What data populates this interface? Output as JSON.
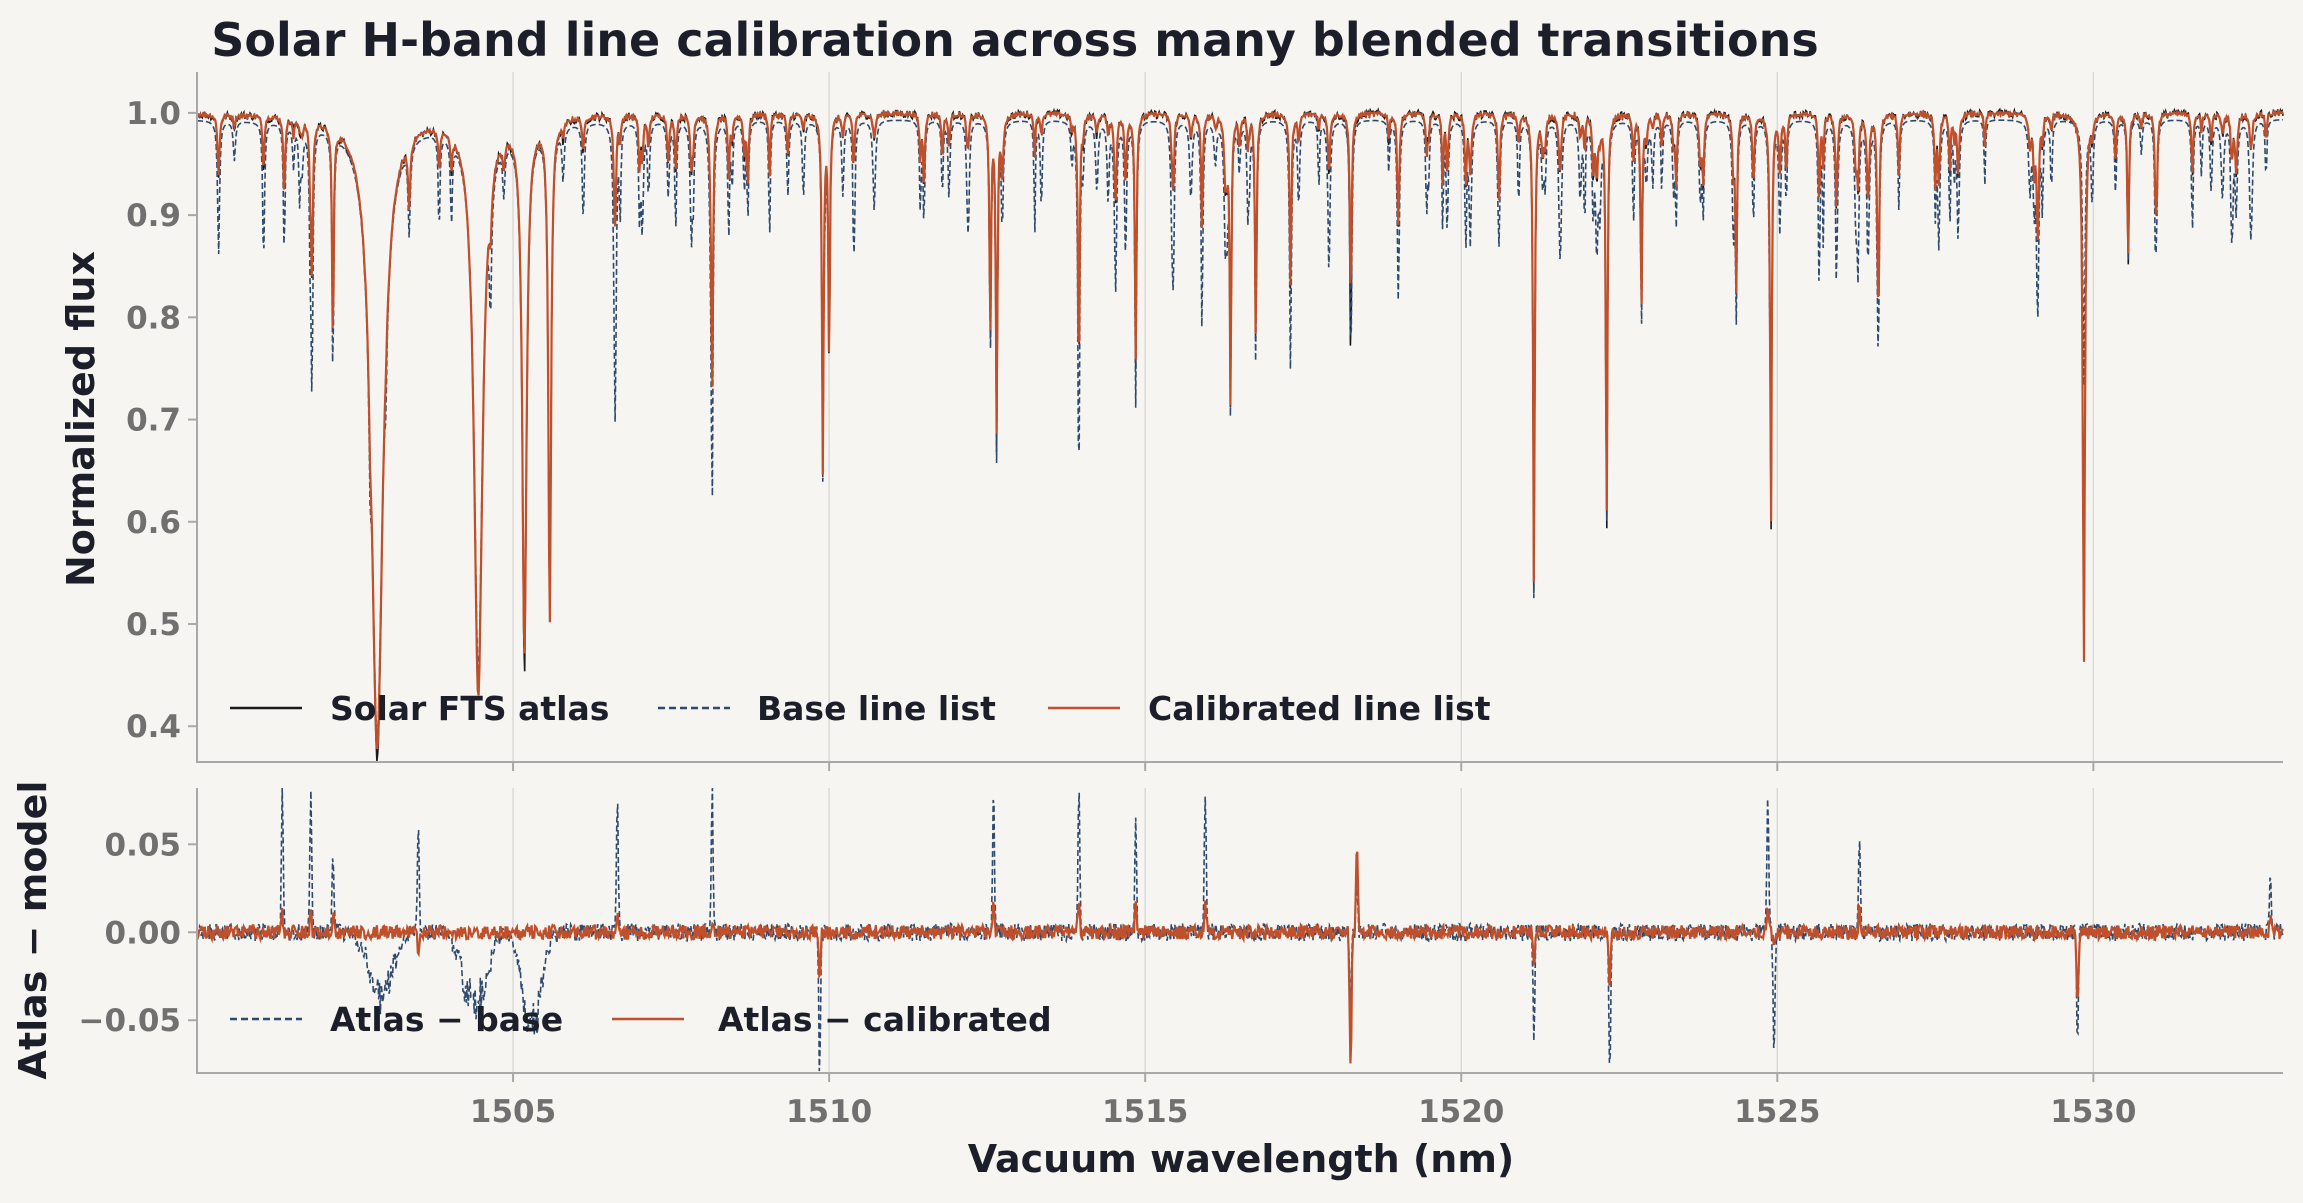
{
  "chart_data": [
    {
      "type": "line",
      "title": "Solar H-band line calibration across many blended transitions",
      "xlabel": "",
      "ylabel": "Normalized flux",
      "xlim": [
        1500.0,
        1533.0
      ],
      "ylim": [
        0.365,
        1.04
      ],
      "yticks": [
        0.4,
        0.5,
        0.6,
        0.7,
        0.8,
        0.9,
        1.0
      ],
      "ytick_labels": [
        "0.4",
        "0.5",
        "0.6",
        "0.7",
        "0.8",
        "0.9",
        "1.0"
      ],
      "xticks": [
        1505,
        1510,
        1515,
        1520,
        1525,
        1530
      ],
      "grid": "vertical",
      "legend_position": "lower-left",
      "series": [
        {
          "name": "Solar FTS atlas",
          "color": "#1a1a1a",
          "style": "solid"
        },
        {
          "name": "Base line list",
          "color": "#2e4a6e",
          "style": "dashed"
        },
        {
          "name": "Calibrated line list",
          "color": "#c0502b",
          "style": "solid"
        }
      ],
      "lines": [
        {
          "center": 1502.85,
          "atlas_depth": 0.37,
          "base_depth": 0.4,
          "cal_depth": 0.38,
          "width": 0.11
        },
        {
          "center": 1504.45,
          "atlas_depth": 0.43,
          "base_depth": 0.46,
          "cal_depth": 0.43,
          "width": 0.08
        },
        {
          "center": 1505.18,
          "atlas_depth": 0.45,
          "base_depth": 0.48,
          "cal_depth": 0.47,
          "width": 0.04
        },
        {
          "center": 1505.58,
          "atlas_depth": 0.5,
          "base_depth": 0.52,
          "cal_depth": 0.5,
          "width": 0.025
        },
        {
          "center": 1501.38,
          "atlas_depth": 0.92,
          "base_depth": 0.87,
          "cal_depth": 0.92,
          "width": 0.015
        },
        {
          "center": 1501.82,
          "atlas_depth": 0.85,
          "base_depth": 0.745,
          "cal_depth": 0.85,
          "width": 0.015
        },
        {
          "center": 1502.15,
          "atlas_depth": 0.78,
          "base_depth": 0.75,
          "cal_depth": 0.78,
          "width": 0.015
        },
        {
          "center": 1506.62,
          "atlas_depth": 0.95,
          "base_depth": 0.83,
          "cal_depth": 0.95,
          "width": 0.015
        },
        {
          "center": 1508.15,
          "atlas_depth": 0.73,
          "base_depth": 0.64,
          "cal_depth": 0.73,
          "width": 0.015
        },
        {
          "center": 1509.9,
          "atlas_depth": 0.65,
          "base_depth": 0.655,
          "cal_depth": 0.65,
          "width": 0.015
        },
        {
          "center": 1510.0,
          "atlas_depth": 0.76,
          "base_depth": 0.8,
          "cal_depth": 0.76,
          "width": 0.015
        },
        {
          "center": 1512.55,
          "atlas_depth": 0.77,
          "base_depth": 0.77,
          "cal_depth": 0.78,
          "width": 0.015
        },
        {
          "center": 1512.65,
          "atlas_depth": 0.67,
          "base_depth": 0.67,
          "cal_depth": 0.69,
          "width": 0.015
        },
        {
          "center": 1513.95,
          "atlas_depth": 0.79,
          "base_depth": 0.7,
          "cal_depth": 0.79,
          "width": 0.015
        },
        {
          "center": 1514.85,
          "atlas_depth": 0.75,
          "base_depth": 0.72,
          "cal_depth": 0.76,
          "width": 0.015
        },
        {
          "center": 1516.35,
          "atlas_depth": 0.72,
          "base_depth": 0.72,
          "cal_depth": 0.72,
          "width": 0.015
        },
        {
          "center": 1516.75,
          "atlas_depth": 0.78,
          "base_depth": 0.76,
          "cal_depth": 0.78,
          "width": 0.015
        },
        {
          "center": 1517.3,
          "atlas_depth": 0.85,
          "base_depth": 0.81,
          "cal_depth": 0.85,
          "width": 0.015
        },
        {
          "center": 1518.25,
          "atlas_depth": 0.775,
          "base_depth": 0.81,
          "cal_depth": 0.84,
          "width": 0.015
        },
        {
          "center": 1521.15,
          "atlas_depth": 0.52,
          "base_depth": 0.52,
          "cal_depth": 0.53,
          "width": 0.015
        },
        {
          "center": 1522.3,
          "atlas_depth": 0.58,
          "base_depth": 0.6,
          "cal_depth": 0.6,
          "width": 0.015
        },
        {
          "center": 1522.85,
          "atlas_depth": 0.81,
          "base_depth": 0.8,
          "cal_depth": 0.81,
          "width": 0.015
        },
        {
          "center": 1524.35,
          "atlas_depth": 0.83,
          "base_depth": 0.81,
          "cal_depth": 0.83,
          "width": 0.015
        },
        {
          "center": 1524.9,
          "atlas_depth": 0.59,
          "base_depth": 0.62,
          "cal_depth": 0.6,
          "width": 0.015
        },
        {
          "center": 1526.6,
          "atlas_depth": 0.81,
          "base_depth": 0.8,
          "cal_depth": 0.81,
          "width": 0.015
        },
        {
          "center": 1529.85,
          "atlas_depth": 0.46,
          "base_depth": 0.74,
          "cal_depth": 0.46,
          "width": 0.02
        },
        {
          "center": 1530.55,
          "atlas_depth": 0.85,
          "base_depth": 0.86,
          "cal_depth": 0.86,
          "width": 0.015
        },
        {
          "center": 1519.0,
          "atlas_depth": 0.93,
          "base_depth": 0.89,
          "cal_depth": 0.93,
          "width": 0.015
        },
        {
          "center": 1520.6,
          "atlas_depth": 0.92,
          "base_depth": 0.89,
          "cal_depth": 0.92,
          "width": 0.015
        },
        {
          "center": 1507.0,
          "atlas_depth": 0.95,
          "base_depth": 0.91,
          "cal_depth": 0.95,
          "width": 0.015
        },
        {
          "center": 1511.5,
          "atlas_depth": 0.93,
          "base_depth": 0.9,
          "cal_depth": 0.93,
          "width": 0.015
        },
        {
          "center": 1515.9,
          "atlas_depth": 0.94,
          "base_depth": 0.89,
          "cal_depth": 0.94,
          "width": 0.015
        },
        {
          "center": 1523.4,
          "atlas_depth": 0.93,
          "base_depth": 0.9,
          "cal_depth": 0.93,
          "width": 0.015
        },
        {
          "center": 1527.5,
          "atlas_depth": 0.93,
          "base_depth": 0.91,
          "cal_depth": 0.93,
          "width": 0.015
        },
        {
          "center": 1531.0,
          "atlas_depth": 0.92,
          "base_depth": 0.92,
          "cal_depth": 0.92,
          "width": 0.015
        }
      ]
    },
    {
      "type": "line",
      "title": "",
      "xlabel": "Vacuum wavelength (nm)",
      "ylabel": "Atlas − model",
      "xlim": [
        1500.0,
        1533.0
      ],
      "ylim": [
        -0.08,
        0.082
      ],
      "yticks": [
        -0.05,
        0.0,
        0.05
      ],
      "ytick_labels": [
        "−0.05",
        "0.00",
        "0.05"
      ],
      "xticks": [
        1505,
        1510,
        1515,
        1520,
        1525,
        1530
      ],
      "xtick_labels": [
        "1505",
        "1510",
        "1515",
        "1520",
        "1525",
        "1530"
      ],
      "grid": "vertical",
      "legend_position": "lower-left",
      "series": [
        {
          "name": "Atlas − base",
          "color": "#2e4a6e",
          "style": "dashed"
        },
        {
          "name": "Atlas − calibrated",
          "color": "#c0502b",
          "style": "solid"
        }
      ],
      "spikes": [
        {
          "x": 1501.35,
          "base": 0.082,
          "cal": 0.01
        },
        {
          "x": 1501.8,
          "base": 0.082,
          "cal": 0.012
        },
        {
          "x": 1502.15,
          "base": 0.05,
          "cal": 0.01
        },
        {
          "x": 1503.5,
          "base": 0.066,
          "cal": -0.01
        },
        {
          "x": 1506.65,
          "base": 0.082,
          "cal": 0.01
        },
        {
          "x": 1508.15,
          "base": 0.082,
          "cal": 0.005
        },
        {
          "x": 1509.85,
          "base": -0.08,
          "cal": -0.03
        },
        {
          "x": 1512.6,
          "base": 0.082,
          "cal": 0.02
        },
        {
          "x": 1513.95,
          "base": 0.082,
          "cal": 0.018
        },
        {
          "x": 1514.85,
          "base": 0.07,
          "cal": 0.015
        },
        {
          "x": 1515.95,
          "base": 0.082,
          "cal": 0.02
        },
        {
          "x": 1518.25,
          "base": -0.04,
          "cal": -0.08
        },
        {
          "x": 1518.35,
          "base": 0.03,
          "cal": 0.05
        },
        {
          "x": 1521.15,
          "base": -0.06,
          "cal": -0.02
        },
        {
          "x": 1522.35,
          "base": -0.08,
          "cal": -0.03
        },
        {
          "x": 1524.85,
          "base": 0.082,
          "cal": 0.015
        },
        {
          "x": 1524.95,
          "base": -0.07,
          "cal": -0.01
        },
        {
          "x": 1526.3,
          "base": 0.05,
          "cal": 0.015
        },
        {
          "x": 1529.75,
          "base": -0.065,
          "cal": -0.04
        },
        {
          "x": 1532.8,
          "base": 0.035,
          "cal": 0.01
        }
      ],
      "broad_dips_base": [
        {
          "x": 1502.9,
          "value": -0.045,
          "width": 0.25
        },
        {
          "x": 1504.4,
          "value": -0.055,
          "width": 0.25
        },
        {
          "x": 1505.3,
          "value": -0.07,
          "width": 0.2
        }
      ]
    }
  ]
}
